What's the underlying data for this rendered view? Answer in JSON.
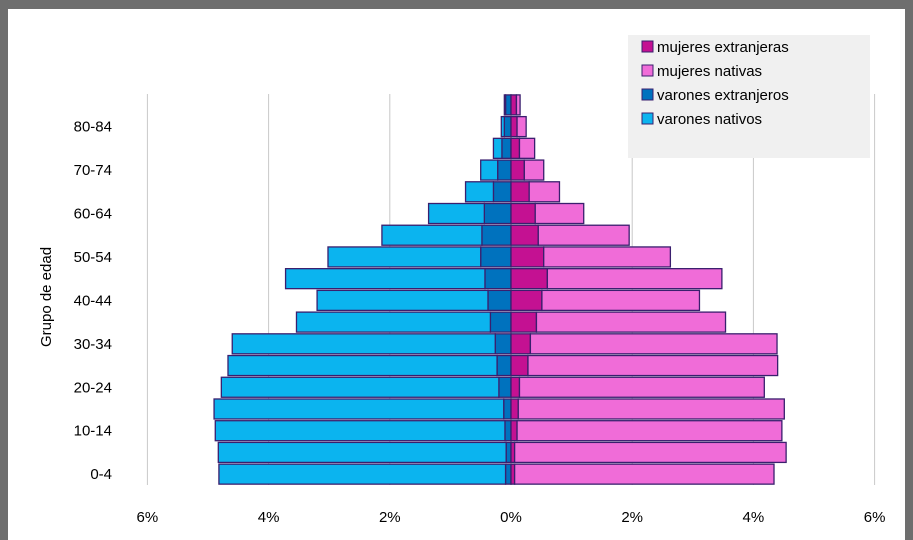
{
  "chart_data": {
    "type": "bar",
    "orientation": "horizontal",
    "layout": "population-pyramid",
    "ylabel": "Grupo de edad",
    "xlim": [
      -6,
      6
    ],
    "x_ticks": [
      "6%",
      "4%",
      "2%",
      "0%",
      "2%",
      "4%",
      "6%"
    ],
    "categories": [
      "0-4",
      "5-9",
      "10-14",
      "15-19",
      "20-24",
      "25-29",
      "30-34",
      "35-39",
      "40-44",
      "45-49",
      "50-54",
      "55-59",
      "60-64",
      "65-69",
      "70-74",
      "75-79",
      "80-84",
      "85+"
    ],
    "category_labels_shown": [
      "0-4",
      "10-14",
      "20-24",
      "30-34",
      "40-44",
      "50-54",
      "60-64",
      "70-74",
      "80-84"
    ],
    "grid": "vertical",
    "legend_position": "top-right",
    "series": [
      {
        "name": "varones nativos",
        "color": "#0bb4ef",
        "side": "left",
        "values": [
          4.73,
          4.75,
          4.78,
          4.78,
          4.58,
          4.44,
          4.34,
          3.2,
          2.82,
          3.29,
          2.52,
          1.65,
          0.92,
          0.46,
          0.28,
          0.14,
          0.05,
          0.02
        ]
      },
      {
        "name": "varones extranjeros",
        "color": "#0072be",
        "side": "left",
        "values": [
          0.09,
          0.08,
          0.1,
          0.12,
          0.2,
          0.23,
          0.26,
          0.34,
          0.38,
          0.43,
          0.5,
          0.48,
          0.44,
          0.29,
          0.22,
          0.15,
          0.11,
          0.09
        ]
      },
      {
        "name": "mujeres extranjeras",
        "color": "#c41192",
        "side": "right",
        "values": [
          0.06,
          0.06,
          0.1,
          0.12,
          0.14,
          0.28,
          0.32,
          0.42,
          0.51,
          0.6,
          0.54,
          0.45,
          0.4,
          0.3,
          0.22,
          0.14,
          0.1,
          0.09
        ]
      },
      {
        "name": "mujeres nativas",
        "color": "#f06cd8",
        "side": "right",
        "values": [
          4.28,
          4.48,
          4.37,
          4.39,
          4.04,
          4.12,
          4.07,
          3.12,
          2.6,
          2.88,
          2.09,
          1.5,
          0.8,
          0.5,
          0.32,
          0.25,
          0.15,
          0.06
        ]
      }
    ]
  },
  "legend": {
    "items": [
      {
        "label": "mujeres extranjeras",
        "color": "#c41192"
      },
      {
        "label": "mujeres nativas",
        "color": "#f06cd8"
      },
      {
        "label": "varones extranjeros",
        "color": "#0072be"
      },
      {
        "label": "varones nativos",
        "color": "#0bb4ef"
      }
    ]
  },
  "colors": {
    "bar_edge": "#3a1f6e",
    "grid": "#c8c8c8",
    "frame": "#6e6e6e"
  }
}
